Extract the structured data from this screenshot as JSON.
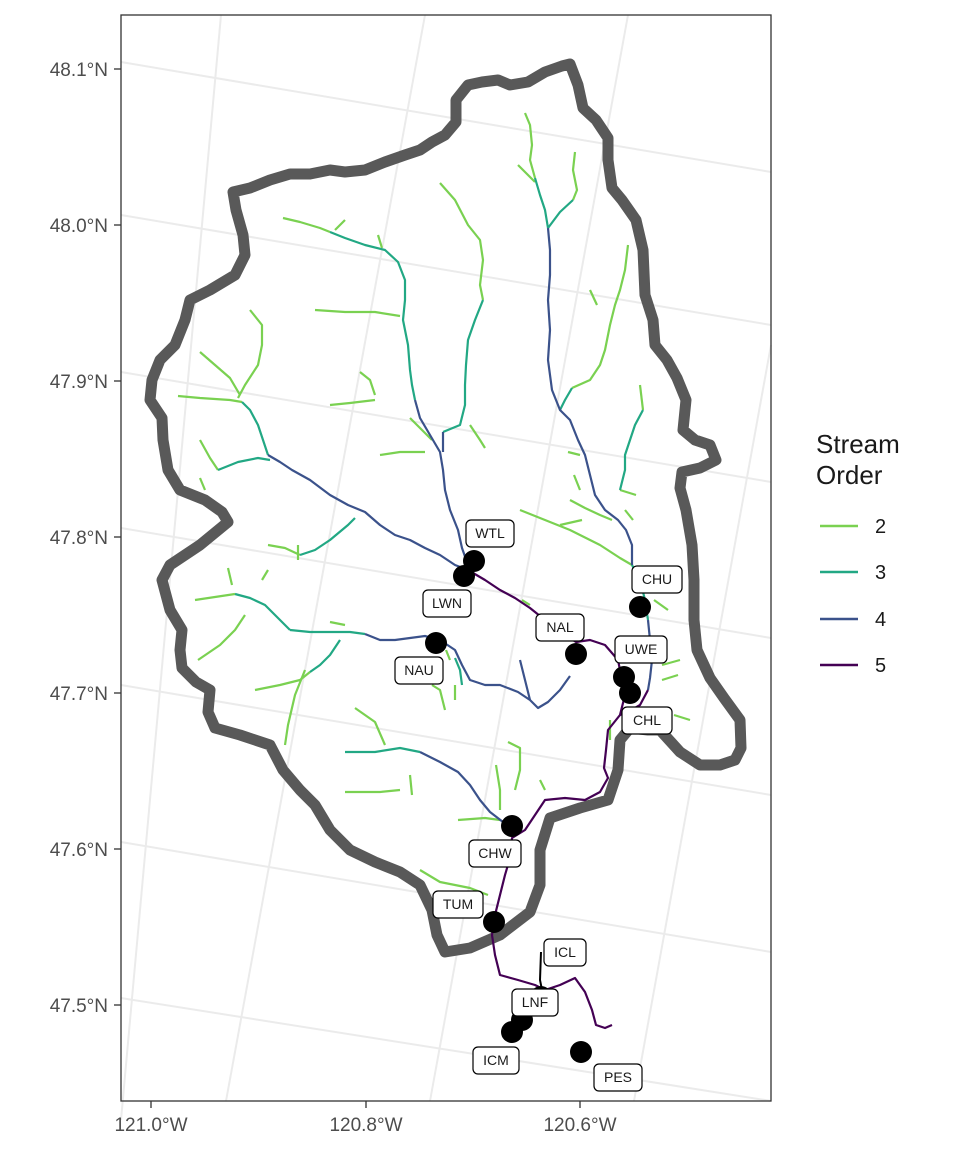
{
  "map": {
    "x_ticks": [
      {
        "label": "121.0°W",
        "value": -121.0
      },
      {
        "label": "120.8°W",
        "value": -120.8
      },
      {
        "label": "120.6°W",
        "value": -120.6
      }
    ],
    "y_ticks": [
      {
        "label": "48.1°N",
        "value": 48.1
      },
      {
        "label": "48.0°N",
        "value": 48.0
      },
      {
        "label": "47.9°N",
        "value": 47.9
      },
      {
        "label": "47.8°N",
        "value": 47.8
      },
      {
        "label": "47.7°N",
        "value": 47.7
      },
      {
        "label": "47.6°N",
        "value": 47.6
      },
      {
        "label": "47.5°N",
        "value": 47.5
      }
    ],
    "legend": {
      "title_line1": "Stream",
      "title_line2": "Order",
      "items": [
        {
          "label": "2",
          "color": "#7ad151"
        },
        {
          "label": "3",
          "color": "#22a884"
        },
        {
          "label": "4",
          "color": "#3b528b"
        },
        {
          "label": "5",
          "color": "#440154"
        }
      ]
    },
    "boundary_color": "#595959",
    "sites": [
      {
        "code": "WTL"
      },
      {
        "code": "LWN"
      },
      {
        "code": "NAU"
      },
      {
        "code": "NAL"
      },
      {
        "code": "CHU"
      },
      {
        "code": "UWE"
      },
      {
        "code": "CHL"
      },
      {
        "code": "CHW"
      },
      {
        "code": "TUM"
      },
      {
        "code": "ICL"
      },
      {
        "code": "LNF"
      },
      {
        "code": "ICM"
      },
      {
        "code": "PES"
      }
    ]
  }
}
